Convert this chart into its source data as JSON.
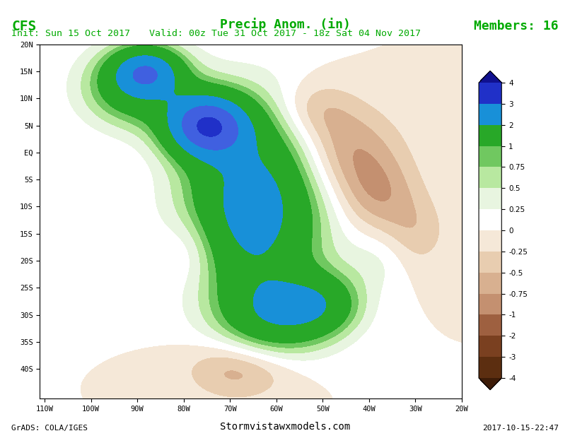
{
  "title": "Precip Anom. (in)",
  "title_left": "CFS",
  "title_right": "Members: 16",
  "subtitle": "Valid: 00z Tue 31 Oct 2017 - 18z Sat 04 Nov 2017",
  "init_label": "Init: Sun 15 Oct 2017",
  "bottom_left": "GrADS: COLA/IGES",
  "bottom_center": "Stormvistawxmodels.com",
  "bottom_right": "2017-10-15-22:47",
  "xlim": [
    -111,
    -20
  ],
  "ylim": [
    -45.5,
    20
  ],
  "xticks": [
    -110,
    -100,
    -90,
    -80,
    -70,
    -60,
    -50,
    -40,
    -30,
    -20
  ],
  "yticks": [
    -40,
    -35,
    -30,
    -25,
    -20,
    -15,
    -10,
    -5,
    0,
    5,
    10,
    15,
    20
  ],
  "xlabel_labels": [
    "110W",
    "100W",
    "90W",
    "80W",
    "70W",
    "60W",
    "50W",
    "40W",
    "30W",
    "20W"
  ],
  "ylabel_labels": [
    "40S",
    "35S",
    "30S",
    "25S",
    "20S",
    "15S",
    "10S",
    "5S",
    "EQ",
    "5N",
    "10N",
    "15N",
    "20N"
  ],
  "colorbar_levels": [
    -5,
    -4,
    -3,
    -2,
    -1,
    -0.75,
    -0.5,
    -0.25,
    0,
    0.25,
    0.5,
    0.75,
    1,
    2,
    3,
    4,
    5
  ],
  "colorbar_colors": [
    "#3d1c08",
    "#5c2e10",
    "#7a4020",
    "#9e6040",
    "#c49070",
    "#d8b090",
    "#e8cdb0",
    "#f5e8d8",
    "#ffffff",
    "#e8f5e0",
    "#b8e8a0",
    "#70c860",
    "#28a828",
    "#1890d8",
    "#4060e0",
    "#2030c8",
    "#101090"
  ],
  "bg_color": "#f0f0e8",
  "map_bg": "#d8e8f0",
  "grid_color": "#888888",
  "border_color": "#000000"
}
